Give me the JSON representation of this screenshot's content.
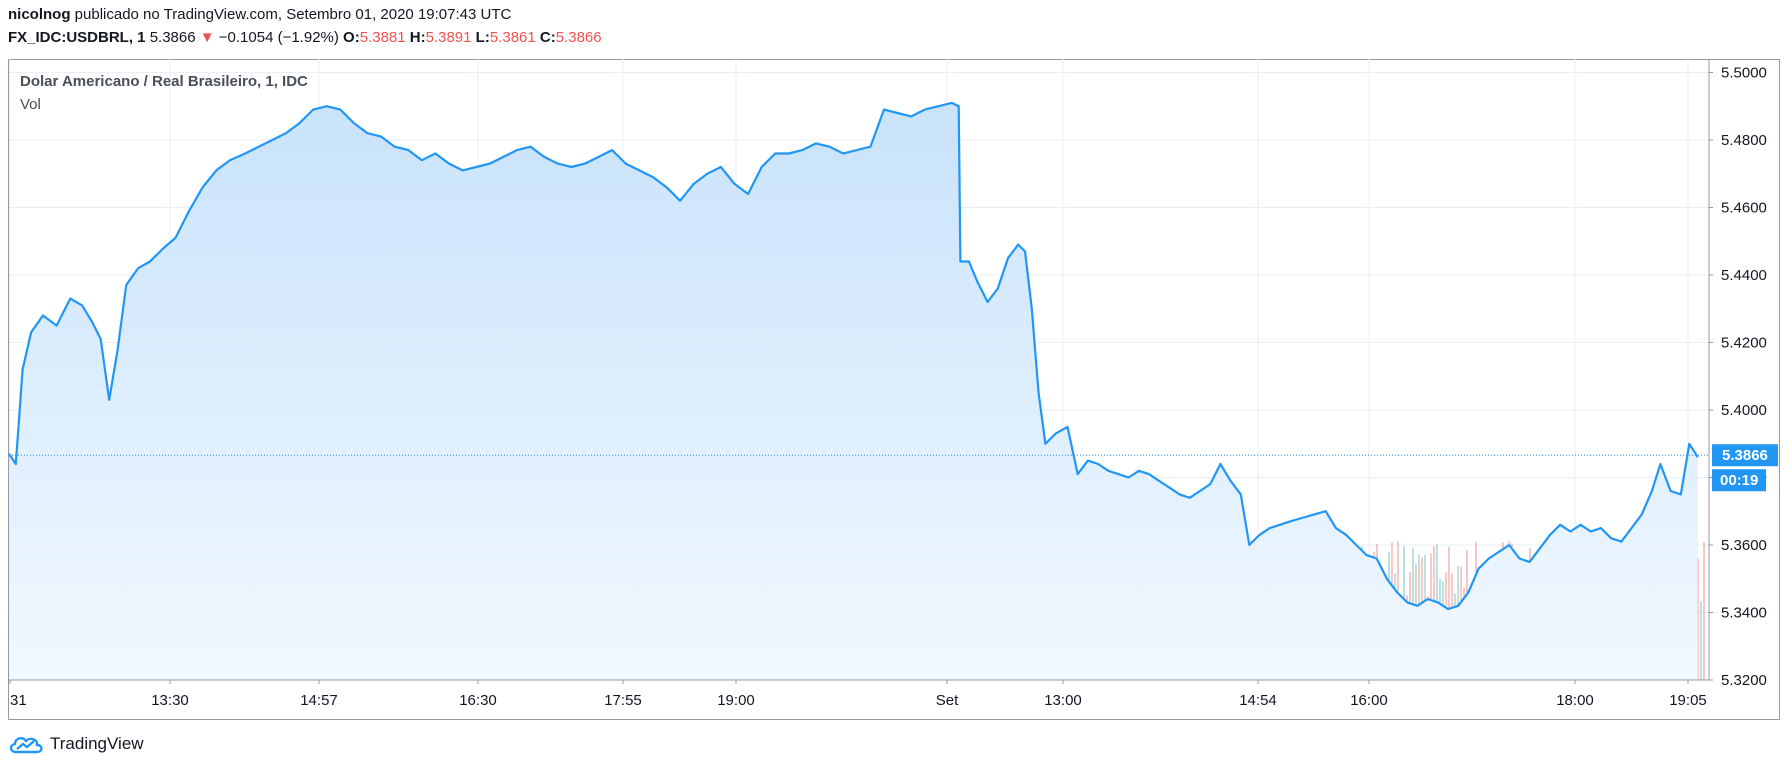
{
  "header": {
    "author": "nicolnog",
    "published_text": " publicado no TradingView.com, Setembro 01, 2020 19:07:43 UTC",
    "symbol": "FX_IDC:USDBRL, 1",
    "last": "5.3866",
    "arrow": "▼",
    "change": "−0.1054 (−1.92%)",
    "o_label": "O:",
    "o_value": "5.3881",
    "h_label": "H:",
    "h_value": "5.3891",
    "l_label": "L:",
    "l_value": "5.3861",
    "c_label": "C:",
    "c_value": "5.3866"
  },
  "legend": {
    "title": "Dolar Americano / Real Brasileiro, 1, IDC",
    "volume": "Vol"
  },
  "price_badge": {
    "price": "5.3866",
    "countdown": "00:19"
  },
  "footer": {
    "brand": "TradingView"
  },
  "colors": {
    "line": "#2196f3",
    "area_top": "#c9e3fb",
    "area_bottom": "#f1f8ff",
    "vol_up": "#80cbc4",
    "vol_down": "#ef9a9a",
    "grid": "#e8eef3",
    "badge": "#2196f3"
  },
  "chart_data": {
    "type": "area",
    "y_axis": {
      "ticks": [
        "5.5000",
        "5.4800",
        "5.4600",
        "5.4400",
        "5.4200",
        "5.4000",
        "5.3800",
        "5.3600",
        "5.3400",
        "5.3200"
      ],
      "ylim": [
        5.32,
        5.504
      ]
    },
    "x_axis": {
      "ticks": [
        "31",
        "13:30",
        "14:57",
        "16:30",
        "17:55",
        "19:00",
        "Set",
        "13:00",
        "14:54",
        "16:00",
        "18:00",
        "19:05"
      ]
    },
    "series": [
      {
        "points": [
          [
            0,
            5.387
          ],
          [
            0.4,
            5.384
          ],
          [
            0.8,
            5.412
          ],
          [
            1.3,
            5.423
          ],
          [
            2,
            5.428
          ],
          [
            2.8,
            5.425
          ],
          [
            3.6,
            5.433
          ],
          [
            4.3,
            5.431
          ],
          [
            4.9,
            5.426
          ],
          [
            5.4,
            5.421
          ],
          [
            5.9,
            5.403
          ],
          [
            6.4,
            5.418
          ],
          [
            6.9,
            5.437
          ],
          [
            7.6,
            5.442
          ],
          [
            8.3,
            5.444
          ],
          [
            9.1,
            5.448
          ],
          [
            9.8,
            5.451
          ],
          [
            10.6,
            5.459
          ],
          [
            11.4,
            5.466
          ],
          [
            12.2,
            5.471
          ],
          [
            13,
            5.474
          ],
          [
            13.9,
            5.476
          ],
          [
            14.7,
            5.478
          ],
          [
            15.5,
            5.48
          ],
          [
            16.3,
            5.482
          ],
          [
            17.1,
            5.485
          ],
          [
            17.9,
            5.489
          ],
          [
            18.7,
            5.49
          ],
          [
            19.5,
            5.489
          ],
          [
            20.3,
            5.485
          ],
          [
            21.1,
            5.482
          ],
          [
            21.9,
            5.481
          ],
          [
            22.7,
            5.478
          ],
          [
            23.5,
            5.477
          ],
          [
            24.3,
            5.474
          ],
          [
            25.1,
            5.476
          ],
          [
            25.9,
            5.473
          ],
          [
            26.7,
            5.471
          ],
          [
            27.5,
            5.472
          ],
          [
            28.3,
            5.473
          ],
          [
            29.1,
            5.475
          ],
          [
            29.9,
            5.477
          ],
          [
            30.7,
            5.478
          ],
          [
            31.5,
            5.475
          ],
          [
            32.3,
            5.473
          ],
          [
            33.1,
            5.472
          ],
          [
            33.9,
            5.473
          ],
          [
            34.7,
            5.475
          ],
          [
            35.5,
            5.477
          ],
          [
            36.3,
            5.473
          ],
          [
            37.1,
            5.471
          ],
          [
            37.9,
            5.469
          ],
          [
            38.7,
            5.466
          ],
          [
            39.5,
            5.462
          ],
          [
            40.3,
            5.467
          ],
          [
            41.1,
            5.47
          ],
          [
            41.9,
            5.472
          ],
          [
            42.7,
            5.467
          ],
          [
            43.5,
            5.464
          ],
          [
            44.3,
            5.472
          ],
          [
            45.1,
            5.476
          ],
          [
            45.9,
            5.476
          ],
          [
            46.7,
            5.477
          ],
          [
            47.5,
            5.479
          ],
          [
            48.3,
            5.478
          ],
          [
            49.1,
            5.476
          ],
          [
            49.9,
            5.477
          ],
          [
            50.7,
            5.478
          ],
          [
            51.5,
            5.489
          ],
          [
            52.3,
            5.488
          ],
          [
            53.1,
            5.487
          ],
          [
            53.9,
            5.489
          ],
          [
            54.7,
            5.49
          ],
          [
            55.5,
            5.491
          ],
          [
            55.9,
            5.49
          ],
          [
            56,
            5.444
          ],
          [
            56.5,
            5.444
          ],
          [
            57,
            5.438
          ],
          [
            57.6,
            5.432
          ],
          [
            58.2,
            5.436
          ],
          [
            58.8,
            5.445
          ],
          [
            59.4,
            5.449
          ],
          [
            59.8,
            5.447
          ],
          [
            60.2,
            5.43
          ],
          [
            60.6,
            5.405
          ],
          [
            61,
            5.39
          ],
          [
            61.6,
            5.393
          ],
          [
            62.3,
            5.395
          ],
          [
            62.9,
            5.381
          ],
          [
            63.5,
            5.385
          ],
          [
            64.1,
            5.384
          ],
          [
            64.7,
            5.382
          ],
          [
            65.3,
            5.381
          ],
          [
            65.9,
            5.38
          ],
          [
            66.5,
            5.382
          ],
          [
            67.1,
            5.381
          ],
          [
            67.7,
            5.379
          ],
          [
            68.3,
            5.377
          ],
          [
            68.9,
            5.375
          ],
          [
            69.5,
            5.374
          ],
          [
            70.1,
            5.376
          ],
          [
            70.7,
            5.378
          ],
          [
            71.3,
            5.384
          ],
          [
            71.9,
            5.379
          ],
          [
            72.5,
            5.375
          ],
          [
            73,
            5.36
          ],
          [
            73.6,
            5.363
          ],
          [
            74.2,
            5.365
          ],
          [
            74.8,
            5.366
          ],
          [
            75.4,
            5.367
          ],
          [
            76.1,
            5.368
          ],
          [
            76.8,
            5.369
          ],
          [
            77.5,
            5.37
          ],
          [
            78.1,
            5.365
          ],
          [
            78.7,
            5.363
          ],
          [
            79.3,
            5.36
          ],
          [
            79.9,
            5.357
          ],
          [
            80.5,
            5.356
          ],
          [
            81.1,
            5.35
          ],
          [
            81.7,
            5.346
          ],
          [
            82.3,
            5.343
          ],
          [
            82.9,
            5.342
          ],
          [
            83.5,
            5.344
          ],
          [
            84.1,
            5.343
          ],
          [
            84.7,
            5.341
          ],
          [
            85.3,
            5.342
          ],
          [
            85.9,
            5.346
          ],
          [
            86.5,
            5.353
          ],
          [
            87.1,
            5.356
          ],
          [
            87.7,
            5.358
          ],
          [
            88.3,
            5.36
          ],
          [
            88.9,
            5.356
          ],
          [
            89.5,
            5.355
          ],
          [
            90.1,
            5.359
          ],
          [
            90.7,
            5.363
          ],
          [
            91.3,
            5.366
          ],
          [
            91.9,
            5.364
          ],
          [
            92.5,
            5.366
          ],
          [
            93.1,
            5.364
          ],
          [
            93.7,
            5.365
          ],
          [
            94.3,
            5.362
          ],
          [
            94.9,
            5.361
          ],
          [
            95.5,
            5.365
          ],
          [
            96.1,
            5.369
          ],
          [
            96.7,
            5.376
          ],
          [
            97.2,
            5.384
          ],
          [
            97.8,
            5.376
          ],
          [
            98.4,
            5.375
          ],
          [
            98.9,
            5.39
          ],
          [
            99.4,
            5.386
          ]
        ]
      }
    ]
  }
}
